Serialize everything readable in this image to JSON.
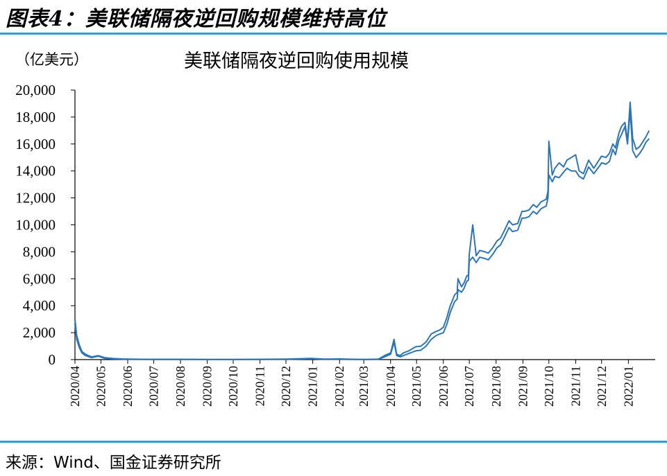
{
  "figure": {
    "title": "图表4：美联储隔夜逆回购规模维持高位",
    "unit": "（亿美元）",
    "source": "来源：Wind、国金证券研究所"
  },
  "chart_data": {
    "type": "line",
    "title": "美联储隔夜逆回购使用规模",
    "xlabel": "",
    "ylabel": "（亿美元）",
    "ylim": [
      0,
      20000
    ],
    "yticks": [
      "0",
      "2,000",
      "4,000",
      "6,000",
      "8,000",
      "10,000",
      "12,000",
      "14,000",
      "16,000",
      "18,000",
      "20,000"
    ],
    "xticks": [
      "2020/04",
      "2020/05",
      "2020/06",
      "2020/07",
      "2020/08",
      "2020/09",
      "2020/10",
      "2020/11",
      "2020/12",
      "2021/01",
      "2021/02",
      "2021/03",
      "2021/04",
      "2021/05",
      "2021/06",
      "2021/07",
      "2021/08",
      "2021/09",
      "2021/10",
      "2021/11",
      "2021/12",
      "2022/01"
    ],
    "grid": false,
    "series": [
      {
        "color": "#2e75b6",
        "x": [
          "2020-04-01",
          "2020-04-03",
          "2020-04-06",
          "2020-04-09",
          "2020-04-13",
          "2020-04-20",
          "2020-04-28",
          "2020-05-05",
          "2020-05-15",
          "2020-05-25",
          "2020-06-10",
          "2020-06-25",
          "2020-07-10",
          "2020-08-01",
          "2020-09-01",
          "2020-10-01",
          "2020-11-01",
          "2020-12-01",
          "2020-12-30",
          "2021-01-15",
          "2021-02-01",
          "2021-02-20",
          "2021-03-05",
          "2021-03-18",
          "2021-03-25",
          "2021-04-01",
          "2021-04-05",
          "2021-04-08",
          "2021-04-12",
          "2021-04-16",
          "2021-04-22",
          "2021-04-30",
          "2021-05-06",
          "2021-05-12",
          "2021-05-18",
          "2021-05-24",
          "2021-05-28",
          "2021-06-01",
          "2021-06-05",
          "2021-06-09",
          "2021-06-14",
          "2021-06-17",
          "2021-06-18",
          "2021-06-22",
          "2021-06-25",
          "2021-06-28",
          "2021-06-30",
          "2021-07-01",
          "2021-07-05",
          "2021-07-09",
          "2021-07-13",
          "2021-07-19",
          "2021-07-23",
          "2021-07-28",
          "2021-08-02",
          "2021-08-06",
          "2021-08-10",
          "2021-08-16",
          "2021-08-20",
          "2021-08-26",
          "2021-08-31",
          "2021-09-03",
          "2021-09-08",
          "2021-09-13",
          "2021-09-17",
          "2021-09-22",
          "2021-09-28",
          "2021-09-30",
          "2021-10-01",
          "2021-10-05",
          "2021-10-08",
          "2021-10-13",
          "2021-10-18",
          "2021-10-22",
          "2021-10-27",
          "2021-11-01",
          "2021-11-05",
          "2021-11-10",
          "2021-11-16",
          "2021-11-22",
          "2021-11-29",
          "2021-12-01",
          "2021-12-06",
          "2021-12-10",
          "2021-12-14",
          "2021-12-17",
          "2021-12-21",
          "2021-12-24",
          "2021-12-28",
          "2021-12-31",
          "2022-01-03",
          "2022-01-06",
          "2022-01-10",
          "2022-01-14",
          "2022-01-18",
          "2022-01-21",
          "2022-01-25"
        ],
        "values": [
          2700,
          1500,
          900,
          500,
          300,
          150,
          250,
          100,
          50,
          30,
          20,
          10,
          10,
          10,
          5,
          5,
          10,
          20,
          60,
          20,
          30,
          10,
          5,
          20,
          200,
          400,
          1300,
          300,
          200,
          300,
          450,
          650,
          700,
          1000,
          1500,
          1800,
          1900,
          2000,
          2600,
          3500,
          4300,
          4500,
          5200,
          5000,
          5300,
          5800,
          5900,
          7300,
          7600,
          7200,
          7600,
          7500,
          7400,
          7800,
          8300,
          8500,
          9000,
          9800,
          9500,
          9600,
          10500,
          10500,
          10600,
          11000,
          10800,
          11200,
          11400,
          12000,
          13700,
          13200,
          13600,
          13500,
          13900,
          14200,
          14000,
          14000,
          13600,
          13400,
          14300,
          13800,
          14400,
          14600,
          14500,
          14700,
          15600,
          15200,
          16300,
          16700,
          17300,
          16000,
          18500,
          15500,
          15000,
          15300,
          15700,
          16100,
          16400
        ]
      },
      {
        "color": "#2e75b6",
        "x": [
          "2020-04-01",
          "2020-04-03",
          "2020-04-06",
          "2020-04-09",
          "2020-04-13",
          "2020-04-20",
          "2020-04-28",
          "2020-05-05",
          "2020-05-15",
          "2020-05-25",
          "2020-06-10",
          "2020-06-25",
          "2020-07-10",
          "2020-08-01",
          "2020-09-01",
          "2020-10-01",
          "2020-11-01",
          "2020-12-01",
          "2020-12-30",
          "2021-01-15",
          "2021-02-01",
          "2021-02-20",
          "2021-03-05",
          "2021-03-18",
          "2021-03-25",
          "2021-04-01",
          "2021-04-05",
          "2021-04-08",
          "2021-04-12",
          "2021-04-16",
          "2021-04-22",
          "2021-04-30",
          "2021-05-06",
          "2021-05-12",
          "2021-05-18",
          "2021-05-24",
          "2021-05-28",
          "2021-06-01",
          "2021-06-05",
          "2021-06-09",
          "2021-06-14",
          "2021-06-17",
          "2021-06-18",
          "2021-06-22",
          "2021-06-25",
          "2021-06-28",
          "2021-06-30",
          "2021-07-01",
          "2021-07-05",
          "2021-07-09",
          "2021-07-13",
          "2021-07-19",
          "2021-07-23",
          "2021-07-28",
          "2021-08-02",
          "2021-08-06",
          "2021-08-10",
          "2021-08-16",
          "2021-08-20",
          "2021-08-26",
          "2021-08-31",
          "2021-09-03",
          "2021-09-08",
          "2021-09-13",
          "2021-09-17",
          "2021-09-22",
          "2021-09-28",
          "2021-09-30",
          "2021-10-01",
          "2021-10-05",
          "2021-10-08",
          "2021-10-13",
          "2021-10-18",
          "2021-10-22",
          "2021-10-27",
          "2021-11-01",
          "2021-11-05",
          "2021-11-10",
          "2021-11-16",
          "2021-11-22",
          "2021-11-29",
          "2021-12-01",
          "2021-12-06",
          "2021-12-10",
          "2021-12-14",
          "2021-12-17",
          "2021-12-21",
          "2021-12-24",
          "2021-12-28",
          "2021-12-31",
          "2022-01-03",
          "2022-01-06",
          "2022-01-10",
          "2022-01-14",
          "2022-01-18",
          "2022-01-21",
          "2022-01-25"
        ],
        "values": [
          3000,
          1800,
          1100,
          600,
          400,
          200,
          300,
          150,
          80,
          50,
          30,
          20,
          20,
          20,
          10,
          10,
          20,
          40,
          90,
          40,
          50,
          20,
          10,
          40,
          300,
          500,
          1500,
          400,
          300,
          500,
          650,
          950,
          1000,
          1300,
          1900,
          2100,
          2200,
          2400,
          3100,
          4000,
          4800,
          5000,
          6000,
          5400,
          5700,
          6200,
          6300,
          7800,
          10000,
          7700,
          8100,
          8000,
          7900,
          8300,
          8800,
          9000,
          9500,
          10300,
          10000,
          10100,
          11000,
          11000,
          11100,
          11500,
          11300,
          11700,
          11900,
          12500,
          16200,
          13700,
          14200,
          14600,
          14300,
          14800,
          15000,
          15200,
          14000,
          13800,
          14800,
          14200,
          14900,
          15100,
          15000,
          15300,
          16000,
          15700,
          16800,
          17300,
          17600,
          16200,
          19100,
          16400,
          15600,
          15800,
          16200,
          16500,
          17000
        ]
      }
    ]
  }
}
